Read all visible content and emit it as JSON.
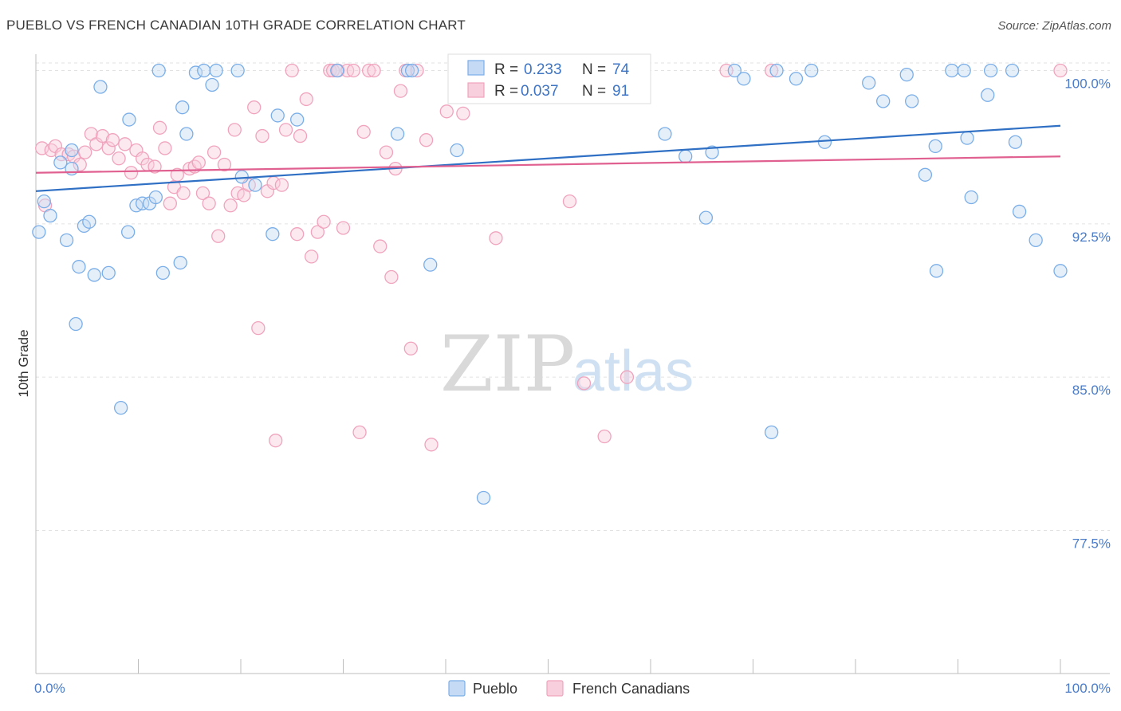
{
  "title": "PUEBLO VS FRENCH CANADIAN 10TH GRADE CORRELATION CHART",
  "source": "Source: ZipAtlas.com",
  "watermark": {
    "zip": "ZIP",
    "atlas": "atlas"
  },
  "chart_data": {
    "type": "scatter",
    "ylabel": "10th Grade",
    "xlabel": "",
    "xlim": [
      0,
      100
    ],
    "ylim": [
      70.5,
      100.8
    ],
    "x_tick_labels": [
      "0.0%",
      "100.0%"
    ],
    "y_ticks": [
      100.0,
      92.5,
      85.0,
      77.5
    ],
    "y_tick_labels": [
      "100.0%",
      "92.5%",
      "85.0%",
      "77.5%"
    ],
    "grid": "horizontal dashed",
    "legend": {
      "placement": "top-center",
      "entries": [
        {
          "r_label": "R =",
          "r_value": "0.233",
          "n_label": "N =",
          "n_value": "74"
        },
        {
          "r_label": "R =",
          "r_value": "0.037",
          "n_label": "N =",
          "n_value": "91"
        }
      ]
    },
    "series": [
      {
        "name": "Pueblo",
        "color": "#7aaee8",
        "fill": "#c5dbf5",
        "trend_color": "#2f6fc4",
        "trend": [
          [
            0,
            94.1
          ],
          [
            100,
            97.3
          ]
        ],
        "points": [
          [
            0.3,
            92.1
          ],
          [
            0.8,
            93.6
          ],
          [
            1.4,
            92.9
          ],
          [
            2.4,
            95.5
          ],
          [
            3.0,
            91.7
          ],
          [
            3.5,
            95.2
          ],
          [
            3.5,
            96.1
          ],
          [
            3.9,
            87.6
          ],
          [
            4.2,
            90.4
          ],
          [
            4.7,
            92.4
          ],
          [
            5.2,
            92.6
          ],
          [
            5.7,
            90.0
          ],
          [
            6.3,
            99.2
          ],
          [
            7.1,
            90.1
          ],
          [
            8.3,
            83.5
          ],
          [
            9.0,
            92.1
          ],
          [
            9.1,
            97.6
          ],
          [
            9.8,
            93.4
          ],
          [
            10.4,
            93.5
          ],
          [
            11.1,
            93.5
          ],
          [
            11.7,
            93.8
          ],
          [
            12.0,
            100.0
          ],
          [
            12.4,
            90.1
          ],
          [
            14.1,
            90.6
          ],
          [
            14.3,
            98.2
          ],
          [
            14.7,
            96.9
          ],
          [
            15.6,
            99.9
          ],
          [
            16.4,
            100.0
          ],
          [
            17.2,
            99.3
          ],
          [
            17.6,
            100.0
          ],
          [
            19.7,
            100.0
          ],
          [
            20.1,
            94.8
          ],
          [
            21.4,
            94.4
          ],
          [
            23.1,
            92.0
          ],
          [
            23.6,
            97.8
          ],
          [
            25.5,
            97.6
          ],
          [
            29.4,
            100.0
          ],
          [
            35.3,
            96.9
          ],
          [
            36.3,
            100.0
          ],
          [
            36.7,
            100.0
          ],
          [
            38.5,
            90.5
          ],
          [
            41.1,
            96.1
          ],
          [
            43.7,
            79.1
          ],
          [
            43.9,
            100.0
          ],
          [
            48.5,
            100.0
          ],
          [
            61.4,
            96.9
          ],
          [
            63.4,
            95.8
          ],
          [
            65.4,
            92.8
          ],
          [
            66.0,
            96.0
          ],
          [
            68.2,
            100.0
          ],
          [
            69.1,
            99.6
          ],
          [
            71.8,
            82.3
          ],
          [
            72.3,
            100.0
          ],
          [
            74.2,
            99.6
          ],
          [
            75.7,
            100.0
          ],
          [
            77.0,
            96.5
          ],
          [
            81.3,
            99.4
          ],
          [
            82.7,
            98.5
          ],
          [
            85.0,
            99.8
          ],
          [
            85.5,
            98.5
          ],
          [
            86.8,
            94.9
          ],
          [
            87.8,
            96.3
          ],
          [
            87.9,
            90.2
          ],
          [
            89.4,
            100.0
          ],
          [
            90.6,
            100.0
          ],
          [
            90.9,
            96.7
          ],
          [
            91.3,
            93.8
          ],
          [
            92.9,
            98.8
          ],
          [
            93.2,
            100.0
          ],
          [
            95.3,
            100.0
          ],
          [
            95.6,
            96.5
          ],
          [
            96.0,
            93.1
          ],
          [
            97.6,
            91.7
          ],
          [
            100.0,
            90.2
          ]
        ]
      },
      {
        "name": "French Canadians",
        "color": "#f0a3bd",
        "fill": "#f8cfdc",
        "trend_color": "#e06090",
        "trend": [
          [
            0,
            95.0
          ],
          [
            100,
            95.8
          ]
        ],
        "points": [
          [
            0.6,
            96.2
          ],
          [
            0.9,
            93.4
          ],
          [
            1.5,
            96.1
          ],
          [
            1.9,
            96.3
          ],
          [
            2.5,
            95.9
          ],
          [
            3.2,
            95.9
          ],
          [
            3.7,
            95.8
          ],
          [
            4.3,
            95.4
          ],
          [
            4.8,
            96.0
          ],
          [
            5.4,
            96.9
          ],
          [
            5.9,
            96.4
          ],
          [
            6.5,
            96.8
          ],
          [
            7.1,
            96.2
          ],
          [
            7.5,
            96.6
          ],
          [
            8.1,
            95.7
          ],
          [
            8.7,
            96.4
          ],
          [
            9.3,
            95.0
          ],
          [
            9.8,
            96.1
          ],
          [
            10.4,
            95.7
          ],
          [
            10.9,
            95.4
          ],
          [
            11.6,
            95.3
          ],
          [
            12.1,
            97.2
          ],
          [
            12.6,
            96.2
          ],
          [
            13.1,
            93.5
          ],
          [
            13.5,
            94.3
          ],
          [
            13.8,
            94.9
          ],
          [
            14.4,
            94.0
          ],
          [
            15.0,
            95.2
          ],
          [
            15.5,
            95.3
          ],
          [
            15.9,
            95.5
          ],
          [
            16.3,
            94.0
          ],
          [
            16.9,
            93.5
          ],
          [
            17.4,
            96.0
          ],
          [
            17.8,
            91.9
          ],
          [
            18.4,
            95.4
          ],
          [
            19.0,
            93.4
          ],
          [
            19.4,
            97.1
          ],
          [
            19.7,
            94.0
          ],
          [
            20.3,
            93.9
          ],
          [
            20.8,
            94.4
          ],
          [
            21.3,
            98.2
          ],
          [
            21.7,
            87.4
          ],
          [
            22.1,
            96.8
          ],
          [
            22.6,
            94.1
          ],
          [
            23.2,
            94.5
          ],
          [
            23.4,
            81.9
          ],
          [
            24.0,
            94.4
          ],
          [
            24.4,
            97.1
          ],
          [
            25.0,
            100.0
          ],
          [
            25.5,
            92.0
          ],
          [
            25.8,
            96.8
          ],
          [
            26.4,
            98.6
          ],
          [
            26.9,
            90.9
          ],
          [
            27.5,
            92.1
          ],
          [
            28.1,
            92.6
          ],
          [
            28.7,
            100.0
          ],
          [
            29.0,
            100.0
          ],
          [
            29.5,
            100.0
          ],
          [
            30.0,
            92.3
          ],
          [
            30.4,
            100.0
          ],
          [
            31.0,
            100.0
          ],
          [
            31.6,
            82.3
          ],
          [
            32.0,
            97.0
          ],
          [
            32.5,
            100.0
          ],
          [
            33.0,
            100.0
          ],
          [
            33.6,
            91.4
          ],
          [
            34.2,
            96.0
          ],
          [
            34.7,
            89.9
          ],
          [
            35.1,
            95.2
          ],
          [
            35.6,
            99.0
          ],
          [
            36.1,
            100.0
          ],
          [
            36.6,
            86.4
          ],
          [
            37.2,
            100.0
          ],
          [
            38.1,
            96.6
          ],
          [
            38.6,
            81.7
          ],
          [
            40.1,
            98.0
          ],
          [
            41.3,
            100.0
          ],
          [
            41.7,
            97.9
          ],
          [
            44.6,
            100.0
          ],
          [
            44.9,
            91.8
          ],
          [
            45.4,
            100.0
          ],
          [
            46.1,
            100.0
          ],
          [
            47.0,
            100.0
          ],
          [
            47.8,
            100.0
          ],
          [
            52.1,
            93.6
          ],
          [
            53.5,
            84.7
          ],
          [
            55.5,
            82.1
          ],
          [
            57.7,
            85.0
          ],
          [
            67.4,
            100.0
          ],
          [
            71.8,
            100.0
          ],
          [
            100.0,
            100.0
          ]
        ]
      }
    ]
  }
}
